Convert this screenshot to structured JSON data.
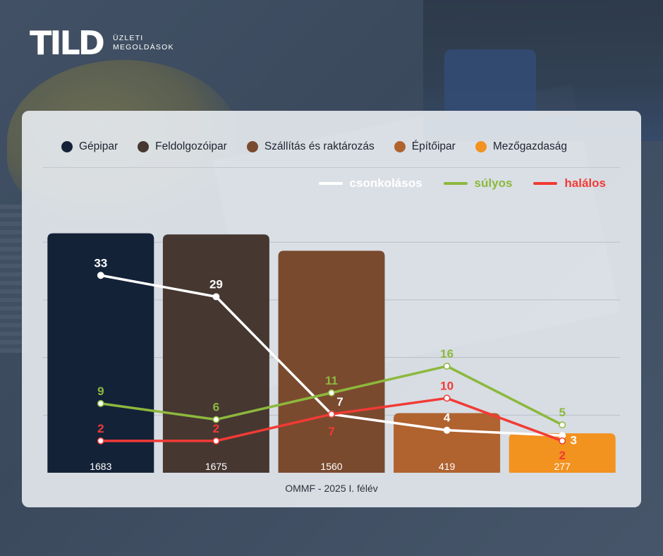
{
  "brand": {
    "logo_text": "TILD",
    "sub_line1": "ÜZLETI",
    "sub_line2": "MEGOLDÁSOK"
  },
  "source_note": "OMMF - 2025 I. félév",
  "colors": {
    "categories": [
      "#142238",
      "#463731",
      "#7a4a2e",
      "#b0622f",
      "#f2921f"
    ],
    "csonkolásos": "#ffffff",
    "súlyos": "#8db83d",
    "halálos": "#f23a35"
  },
  "chart_data": {
    "type": "bar",
    "categories": [
      "Gépipar",
      "Feldolgozóipar",
      "Szállítás és raktározás",
      "Építőipar",
      "Mezőgazdaság"
    ],
    "values": [
      1683,
      1675,
      1560,
      419,
      277
    ],
    "ylim": [
      0,
      1800
    ],
    "grid": true,
    "legend_position": "top",
    "line_series": [
      {
        "name": "csonkolásos",
        "values": [
          33,
          29,
          7,
          4,
          3
        ]
      },
      {
        "name": "súlyos",
        "values": [
          9,
          6,
          11,
          16,
          5
        ]
      },
      {
        "name": "halálos",
        "values": [
          2,
          2,
          7,
          10,
          2
        ]
      }
    ],
    "line_ylim": [
      0,
      44
    ]
  }
}
